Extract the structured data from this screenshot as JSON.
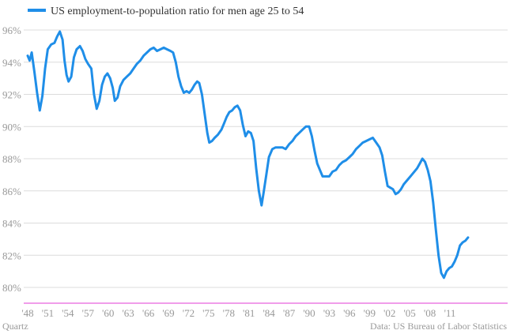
{
  "chart_data": {
    "type": "line",
    "legend": {
      "label": "US employment-to-population ratio for men age 25 to 54",
      "position": "top-left"
    },
    "x_ticks": [
      "'48",
      "'51",
      "'54",
      "'57",
      "'60",
      "'63",
      "'66",
      "'69",
      "'72",
      "'75",
      "'78",
      "'81",
      "'84",
      "'87",
      "'90",
      "'93",
      "'96",
      "'99",
      "'02",
      "'05",
      "'08",
      "'11"
    ],
    "y_ticks": [
      "96%",
      "94%",
      "92%",
      "90%",
      "88%",
      "86%",
      "84%",
      "82%",
      "80%"
    ],
    "ylim": [
      79,
      97
    ],
    "xlim": [
      1948,
      2014
    ],
    "grid": "horizontal",
    "series": [
      {
        "name": "US employment-to-population ratio for men age 25 to 54",
        "color": "#1f8ee8",
        "x": [
          1948.0,
          1948.3,
          1948.6,
          1949.0,
          1949.4,
          1949.8,
          1950.2,
          1950.6,
          1951.0,
          1951.5,
          1952.0,
          1952.4,
          1952.8,
          1953.2,
          1953.5,
          1953.8,
          1954.1,
          1954.5,
          1954.9,
          1955.3,
          1955.8,
          1956.2,
          1956.6,
          1957.0,
          1957.5,
          1957.9,
          1958.3,
          1958.7,
          1959.1,
          1959.5,
          1959.9,
          1960.3,
          1960.7,
          1961.0,
          1961.4,
          1961.8,
          1962.3,
          1962.8,
          1963.3,
          1963.8,
          1964.3,
          1964.8,
          1965.3,
          1965.8,
          1966.3,
          1966.8,
          1967.3,
          1967.8,
          1968.3,
          1968.8,
          1969.3,
          1969.7,
          1970.1,
          1970.5,
          1970.9,
          1971.3,
          1971.7,
          1972.1,
          1972.5,
          1972.9,
          1973.3,
          1973.6,
          1974.0,
          1974.4,
          1974.8,
          1975.1,
          1975.5,
          1975.9,
          1976.4,
          1976.9,
          1977.3,
          1977.7,
          1978.1,
          1978.5,
          1978.9,
          1979.3,
          1979.7,
          1980.1,
          1980.5,
          1980.9,
          1981.3,
          1981.7,
          1982.1,
          1982.5,
          1982.9,
          1983.2,
          1983.6,
          1984.0,
          1984.5,
          1985.0,
          1985.5,
          1986.0,
          1986.5,
          1987.0,
          1987.5,
          1988.0,
          1988.5,
          1989.0,
          1989.5,
          1990.0,
          1990.4,
          1990.8,
          1991.2,
          1991.6,
          1992.0,
          1992.5,
          1993.0,
          1993.5,
          1994.0,
          1994.5,
          1995.0,
          1995.5,
          1996.0,
          1996.5,
          1997.0,
          1997.5,
          1998.0,
          1998.5,
          1999.0,
          1999.5,
          2000.0,
          2000.5,
          2000.9,
          2001.3,
          2001.7,
          2002.1,
          2002.5,
          2002.9,
          2003.3,
          2003.7,
          2004.1,
          2004.5,
          2004.9,
          2005.3,
          2005.7,
          2006.1,
          2006.5,
          2006.9,
          2007.3,
          2007.7,
          2008.1,
          2008.5,
          2008.9,
          2009.3,
          2009.7,
          2010.1,
          2010.5,
          2010.9,
          2011.3,
          2011.7,
          2012.1,
          2012.5,
          2012.9,
          2013.3,
          2013.7
        ],
        "y": [
          94.4,
          94.1,
          94.6,
          93.4,
          92.1,
          91.0,
          91.9,
          93.6,
          94.8,
          95.1,
          95.2,
          95.6,
          95.9,
          95.4,
          94.1,
          93.2,
          92.8,
          93.1,
          94.3,
          94.8,
          95.0,
          94.7,
          94.2,
          93.9,
          93.6,
          92.0,
          91.1,
          91.6,
          92.6,
          93.1,
          93.3,
          93.0,
          92.4,
          91.6,
          91.8,
          92.5,
          92.9,
          93.1,
          93.3,
          93.6,
          93.9,
          94.1,
          94.4,
          94.6,
          94.8,
          94.9,
          94.7,
          94.8,
          94.9,
          94.8,
          94.7,
          94.6,
          94.0,
          93.1,
          92.5,
          92.1,
          92.2,
          92.1,
          92.3,
          92.6,
          92.8,
          92.7,
          92.0,
          90.8,
          89.6,
          89.0,
          89.1,
          89.3,
          89.5,
          89.8,
          90.2,
          90.6,
          90.9,
          91.0,
          91.2,
          91.3,
          91.0,
          90.1,
          89.4,
          89.7,
          89.6,
          89.1,
          87.4,
          86.0,
          85.1,
          85.9,
          87.0,
          88.1,
          88.6,
          88.7,
          88.7,
          88.7,
          88.6,
          88.9,
          89.1,
          89.4,
          89.6,
          89.8,
          90.0,
          90.0,
          89.4,
          88.5,
          87.7,
          87.3,
          86.9,
          86.9,
          86.9,
          87.2,
          87.3,
          87.6,
          87.8,
          87.9,
          88.1,
          88.3,
          88.6,
          88.8,
          89.0,
          89.1,
          89.2,
          89.3,
          89.0,
          88.7,
          88.2,
          87.2,
          86.3,
          86.2,
          86.1,
          85.8,
          85.9,
          86.1,
          86.4,
          86.6,
          86.8,
          87.0,
          87.2,
          87.4,
          87.7,
          88.0,
          87.8,
          87.3,
          86.6,
          85.3,
          83.6,
          82.0,
          80.9,
          80.6,
          81.0,
          81.2,
          81.3,
          81.6,
          82.0,
          82.6,
          82.8,
          82.9,
          83.1
        ]
      }
    ]
  },
  "footer": {
    "source": "Quartz",
    "credit": "Data: US Bureau of Labor Statistics"
  }
}
